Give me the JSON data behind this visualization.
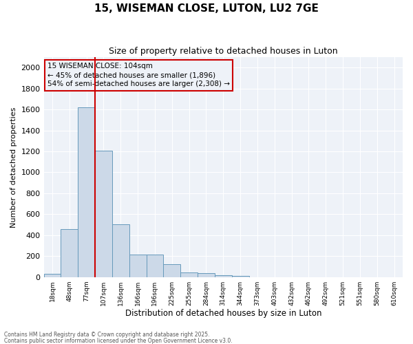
{
  "title": "15, WISEMAN CLOSE, LUTON, LU2 7GE",
  "subtitle": "Size of property relative to detached houses in Luton",
  "xlabel": "Distribution of detached houses by size in Luton",
  "ylabel": "Number of detached properties",
  "categories": [
    "18sqm",
    "48sqm",
    "77sqm",
    "107sqm",
    "136sqm",
    "166sqm",
    "196sqm",
    "225sqm",
    "255sqm",
    "284sqm",
    "314sqm",
    "344sqm",
    "373sqm",
    "403sqm",
    "432sqm",
    "462sqm",
    "492sqm",
    "521sqm",
    "551sqm",
    "580sqm",
    "610sqm"
  ],
  "values": [
    30,
    460,
    1620,
    1210,
    505,
    215,
    215,
    125,
    45,
    35,
    20,
    10,
    0,
    0,
    0,
    0,
    0,
    0,
    0,
    0,
    0
  ],
  "bar_color": "#ccd9e8",
  "bar_edge_color": "#6699bb",
  "vline_color": "#cc0000",
  "annotation_box_color": "#cc0000",
  "annotation_line1": "15 WISEMAN CLOSE: 104sqm",
  "annotation_line2": "← 45% of detached houses are smaller (1,896)",
  "annotation_line3": "54% of semi-detached houses are larger (2,308) →",
  "annotation_fontsize": 7.5,
  "ylim": [
    0,
    2100
  ],
  "yticks": [
    0,
    200,
    400,
    600,
    800,
    1000,
    1200,
    1400,
    1600,
    1800,
    2000
  ],
  "footer1": "Contains HM Land Registry data © Crown copyright and database right 2025.",
  "footer2": "Contains public sector information licensed under the Open Government Licence v3.0.",
  "bg_color": "#ffffff",
  "plot_bg_color": "#eef2f8",
  "grid_color": "#ffffff",
  "title_fontsize": 11,
  "subtitle_fontsize": 9,
  "xlabel_fontsize": 8.5,
  "ylabel_fontsize": 8,
  "xtick_fontsize": 6.5,
  "ytick_fontsize": 8
}
